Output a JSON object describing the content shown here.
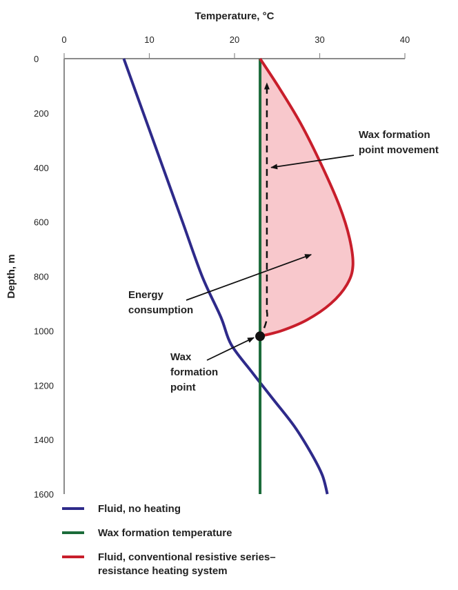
{
  "chart_data": {
    "type": "line",
    "xlabel": "Temperature, °C",
    "ylabel": "Depth, m",
    "xlim": [
      0,
      40
    ],
    "ylim": [
      0,
      1600
    ],
    "x_ticks": [
      "0",
      "10",
      "20",
      "30",
      "40"
    ],
    "y_ticks": [
      "0",
      "200",
      "400",
      "600",
      "800",
      "1000",
      "1200",
      "1400",
      "1600"
    ],
    "x_axis_position": "top",
    "y_axis_inverted": true,
    "series": [
      {
        "name": "Fluid, no heating",
        "color": "#2e2a8a",
        "points": [
          [
            7,
            0
          ],
          [
            9.3,
            200
          ],
          [
            11.6,
            400
          ],
          [
            13.9,
            600
          ],
          [
            16.2,
            800
          ],
          [
            18.4,
            950
          ],
          [
            19.6,
            1050
          ],
          [
            22,
            1150
          ],
          [
            24.5,
            1250
          ],
          [
            27,
            1350
          ],
          [
            29,
            1450
          ],
          [
            30.3,
            1530
          ],
          [
            30.9,
            1600
          ]
        ]
      },
      {
        "name": "Wax formation temperature",
        "color": "#1b6b3a",
        "points": [
          [
            23,
            0
          ],
          [
            23,
            1600
          ]
        ]
      },
      {
        "name": "Fluid, conventional resistive series–resistance heating system",
        "color": "#c81e2b",
        "points": [
          [
            23,
            1020
          ],
          [
            25.5,
            1000
          ],
          [
            28.5,
            960
          ],
          [
            31.3,
            900
          ],
          [
            33.2,
            830
          ],
          [
            33.9,
            760
          ],
          [
            33.5,
            660
          ],
          [
            32.3,
            540
          ],
          [
            30.2,
            390
          ],
          [
            27.8,
            240
          ],
          [
            25.3,
            110
          ],
          [
            23,
            0
          ]
        ]
      }
    ],
    "shaded_region": {
      "name": "Energy consumption",
      "fill": "#f8c8cc"
    },
    "marker_point": {
      "x": 23,
      "y": 1020
    },
    "dashed_arrow": {
      "x": [
        23.8,
        23.8
      ],
      "y": [
        930,
        90
      ]
    },
    "annotations": [
      {
        "text": [
          "Wax formation",
          "point movement"
        ],
        "target": [
          24.3,
          400
        ]
      },
      {
        "text": [
          "Energy",
          "consumption"
        ],
        "target": [
          29,
          720
        ]
      },
      {
        "text": [
          "Wax",
          "formation",
          "point"
        ],
        "target": [
          22.6,
          1020
        ]
      }
    ]
  },
  "legend": [
    {
      "label": "Fluid, no heating",
      "color": "#2e2a8a"
    },
    {
      "label": "Wax formation temperature",
      "color": "#1b6b3a"
    },
    {
      "label": "Fluid, conventional resistive series–resistance heating system",
      "color": "#c81e2b"
    }
  ]
}
